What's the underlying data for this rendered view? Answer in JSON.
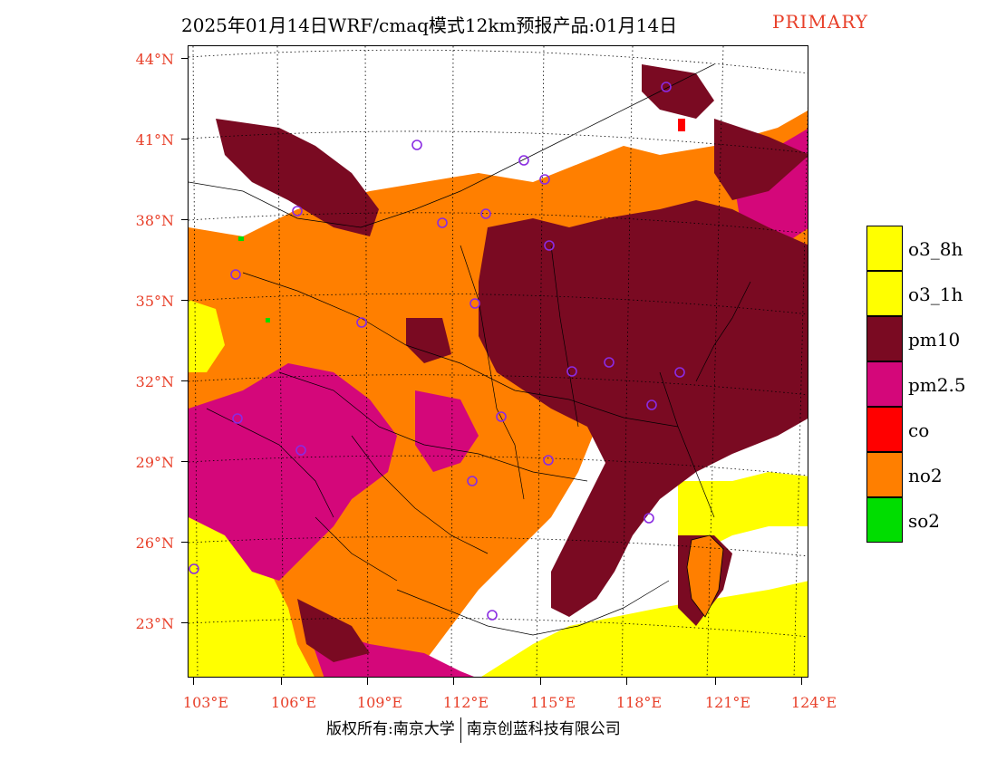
{
  "title": {
    "main": "2025年01月14日WRF/cmaq模式12km预报产品:01月14日",
    "tag": "PRIMARY"
  },
  "axes": {
    "y_labels": [
      "44°N",
      "41°N",
      "38°N",
      "35°N",
      "32°N",
      "29°N",
      "26°N",
      "23°N"
    ],
    "x_labels": [
      "103°E",
      "106°E",
      "109°E",
      "112°E",
      "115°E",
      "118°E",
      "121°E",
      "124°E"
    ]
  },
  "legend": [
    {
      "label": "o3_8h",
      "color": "#ffff00"
    },
    {
      "label": "o3_1h",
      "color": "#ffff00"
    },
    {
      "label": "pm10",
      "color": "#7a0a22"
    },
    {
      "label": "pm2.5",
      "color": "#d4077a"
    },
    {
      "label": "co",
      "color": "#ff0000"
    },
    {
      "label": "no2",
      "color": "#ff7f00"
    },
    {
      "label": "so2",
      "color": "#00dd00"
    }
  ],
  "footer": {
    "left": "版权所有:南京大学",
    "right": "南京创蓝科技有限公司"
  }
}
